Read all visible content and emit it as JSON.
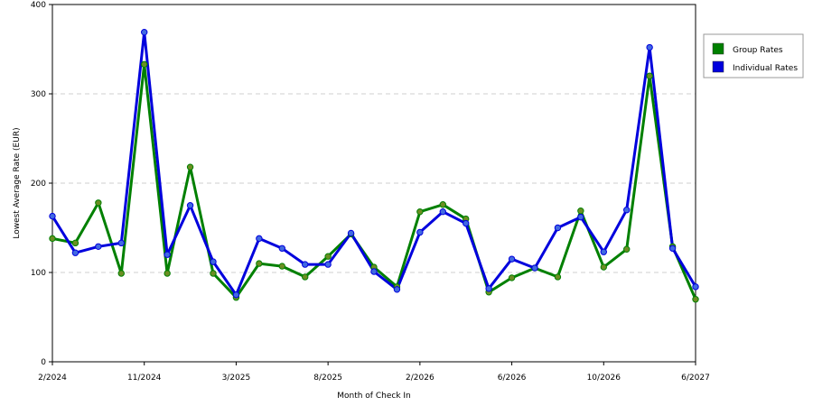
{
  "chart_data": {
    "type": "line",
    "title": "",
    "xlabel": "Month of Check In",
    "ylabel": "Lowest Average Rate (EUR)",
    "ylim": [
      0,
      400
    ],
    "y_ticks": [
      "0",
      "100",
      "200",
      "300",
      "400"
    ],
    "x_tick_labels": [
      "2/2024",
      "11/2024",
      "3/2025",
      "8/2025",
      "2/2026",
      "6/2026",
      "10/2026",
      "6/2027"
    ],
    "x_tick_indices": [
      0,
      4,
      8,
      12,
      16,
      20,
      24,
      28
    ],
    "grid": "horizontal dashed",
    "legend_position": "top-right",
    "categories": [
      "p0",
      "p1",
      "p2",
      "p3",
      "p4",
      "p5",
      "p6",
      "p7",
      "p8",
      "p9",
      "p10",
      "p11",
      "p12",
      "p13",
      "p14",
      "p15",
      "p16",
      "p17",
      "p18",
      "p19",
      "p20",
      "p21",
      "p22",
      "p23",
      "p24",
      "p25",
      "p26",
      "p27",
      "p28"
    ],
    "series": [
      {
        "name": "Group Rates",
        "color": "#008000",
        "marker": "#6b8e23",
        "values": [
          138,
          133,
          178,
          99,
          333,
          99,
          218,
          99,
          72,
          110,
          107,
          95,
          118,
          143,
          106,
          84,
          168,
          176,
          160,
          78,
          94,
          105,
          95,
          169,
          106,
          126,
          320,
          129,
          70
        ]
      },
      {
        "name": "Individual Rates",
        "color": "#0000dd",
        "marker": "#4169e1",
        "values": [
          163,
          122,
          129,
          133,
          369,
          120,
          175,
          112,
          75,
          138,
          127,
          109,
          109,
          144,
          101,
          81,
          145,
          168,
          155,
          82,
          115,
          105,
          150,
          162,
          123,
          170,
          352,
          127,
          84
        ]
      }
    ]
  }
}
